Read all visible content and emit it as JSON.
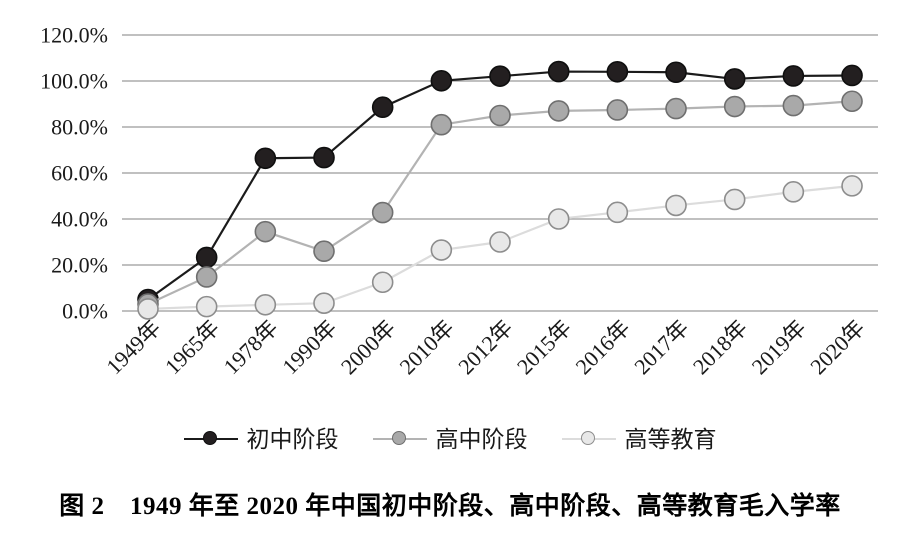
{
  "figure": {
    "caption": "图 2　1949 年至 2020 年中国初中阶段、高中阶段、高等教育毛入学率"
  },
  "colors": {
    "gridline": "#9b9b9b",
    "tick_text": "#1a1a1a",
    "background": "#ffffff"
  },
  "chart_data": {
    "type": "line",
    "title": "",
    "xlabel": "",
    "ylabel": "",
    "ylim": [
      0,
      120
    ],
    "grid": "horizontal",
    "legend_position": "bottom",
    "categories": [
      "1949年",
      "1965年",
      "1978年",
      "1990年",
      "2000年",
      "2010年",
      "2012年",
      "2015年",
      "2016年",
      "2017年",
      "2018年",
      "2019年",
      "2020年"
    ],
    "y_ticks": {
      "values": [
        0,
        20,
        40,
        60,
        80,
        100,
        120
      ],
      "labels": [
        "0.0%",
        "20.0%",
        "40.0%",
        "60.0%",
        "80.0%",
        "100.0%",
        "120.0%"
      ]
    },
    "series": [
      {
        "name": "初中阶段",
        "values": [
          5.0,
          23.3,
          66.4,
          66.7,
          88.6,
          100.1,
          102.1,
          104.1,
          104.0,
          103.8,
          100.9,
          102.2,
          102.4
        ],
        "line_color": "#1b1b1b",
        "dot_fill": "#231f20",
        "dot_stroke": "#0f0f0f"
      },
      {
        "name": "高中阶段",
        "values": [
          3.0,
          14.8,
          34.5,
          26.0,
          42.8,
          81.0,
          85.0,
          87.0,
          87.4,
          88.0,
          88.9,
          89.3,
          91.2
        ],
        "line_color": "#b3b3b3",
        "dot_fill": "#a9a9a9",
        "dot_stroke": "#6f6f6f"
      },
      {
        "name": "高等教育",
        "values": [
          0.9,
          1.9,
          2.7,
          3.4,
          12.5,
          26.5,
          30.0,
          40.0,
          42.9,
          45.9,
          48.5,
          51.8,
          54.4
        ],
        "line_color": "#dcdcdc",
        "dot_fill": "#e8e8e8",
        "dot_stroke": "#8d8d8d"
      }
    ]
  }
}
